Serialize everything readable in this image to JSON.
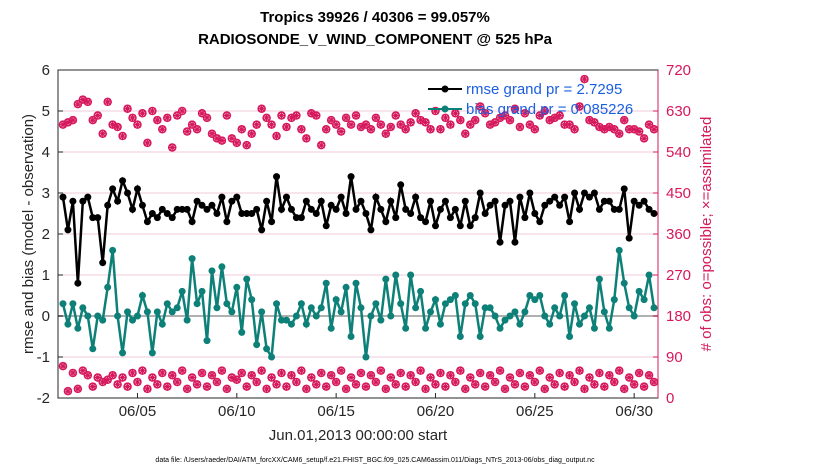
{
  "chart_data": {
    "type": "line",
    "title": "Tropics 39926 / 40306 = 99.057%",
    "subtitle": "RADIOSONDE_V_WIND_COMPONENT @ 525 hPa",
    "xlabel": "Jun.01,2013 00:00:00 start",
    "ylabel": "rmse and bias (model - observation)",
    "ylabel_right": "# of obs: o=possible; ×=assimilated",
    "x_tick_labels": [
      "06/05",
      "06/10",
      "06/15",
      "06/20",
      "06/25",
      "06/30"
    ],
    "x_tick_days": [
      4,
      9,
      14,
      19,
      24,
      29
    ],
    "xlim_days": [
      0,
      30.2
    ],
    "ylim": [
      -2,
      6
    ],
    "y_ticks": [
      -2,
      -1,
      0,
      1,
      2,
      3,
      4,
      5,
      6
    ],
    "ylim_right": [
      0,
      720
    ],
    "y_ticks_right": [
      0,
      90,
      180,
      270,
      360,
      450,
      540,
      630,
      720
    ],
    "grid": "horizontal",
    "legend_position": "top-right",
    "legend": [
      {
        "label": "rmse grand pr = 2.7295",
        "color": "#000000"
      },
      {
        "label": "bias grand pr = 0.085226",
        "color": "#0d8078"
      }
    ],
    "footer": "data file: /Users/raeder/DAI/ATM_forcXX/CAM6_setup/f.e21.FHIST_BGC.f09_025.CAM6assim.011/Diags_NTrS_2013-06/obs_diag_output.nc",
    "x_days": [
      0.25,
      0.5,
      0.75,
      1,
      1.25,
      1.5,
      1.75,
      2,
      2.25,
      2.5,
      2.75,
      3,
      3.25,
      3.5,
      3.75,
      4,
      4.25,
      4.5,
      4.75,
      5,
      5.25,
      5.5,
      5.75,
      6,
      6.25,
      6.5,
      6.75,
      7,
      7.25,
      7.5,
      7.75,
      8,
      8.25,
      8.5,
      8.75,
      9,
      9.25,
      9.5,
      9.75,
      10,
      10.25,
      10.5,
      10.75,
      11,
      11.25,
      11.5,
      11.75,
      12,
      12.25,
      12.5,
      12.75,
      13,
      13.25,
      13.5,
      13.75,
      14,
      14.25,
      14.5,
      14.75,
      15,
      15.25,
      15.5,
      15.75,
      16,
      16.25,
      16.5,
      16.75,
      17,
      17.25,
      17.5,
      17.75,
      18,
      18.25,
      18.5,
      18.75,
      19,
      19.25,
      19.5,
      19.75,
      20,
      20.25,
      20.5,
      20.75,
      21,
      21.25,
      21.5,
      21.75,
      22,
      22.25,
      22.5,
      22.75,
      23,
      23.25,
      23.5,
      23.75,
      24,
      24.25,
      24.5,
      24.75,
      25,
      25.25,
      25.5,
      25.75,
      26,
      26.25,
      26.5,
      26.75,
      27,
      27.25,
      27.5,
      27.75,
      28,
      28.25,
      28.5,
      28.75,
      29,
      29.25,
      29.5,
      29.75,
      30
    ],
    "series": [
      {
        "name": "rmse",
        "color": "#000000",
        "values": [
          2.9,
          2.1,
          2.8,
          0.8,
          2.8,
          2.9,
          2.4,
          2.4,
          1.3,
          2.7,
          3.1,
          2.8,
          3.3,
          3.0,
          2.6,
          3.1,
          2.7,
          2.3,
          2.5,
          2.4,
          2.6,
          2.5,
          2.4,
          2.6,
          2.6,
          2.6,
          2.3,
          2.8,
          2.7,
          2.6,
          2.7,
          2.5,
          2.9,
          2.3,
          2.8,
          2.9,
          2.5,
          2.5,
          2.5,
          2.6,
          2.1,
          2.8,
          2.3,
          3.4,
          2.6,
          2.9,
          2.6,
          2.4,
          2.4,
          2.8,
          2.6,
          2.5,
          2.8,
          2.2,
          2.7,
          2.6,
          2.9,
          2.5,
          3.4,
          2.6,
          2.8,
          2.5,
          2.1,
          2.9,
          2.6,
          2.3,
          2.8,
          2.4,
          3.2,
          2.6,
          2.5,
          2.9,
          2.4,
          2.3,
          2.8,
          2.2,
          2.6,
          2.8,
          2.4,
          2.6,
          2.2,
          2.8,
          2.2,
          2.4,
          3.0,
          2.5,
          2.7,
          2.8,
          1.8,
          2.7,
          2.8,
          1.8,
          2.9,
          2.4,
          3.0,
          2.5,
          2.3,
          2.7,
          2.8,
          2.9,
          2.7,
          2.9,
          2.3,
          3.0,
          2.6,
          3.0,
          2.9,
          3.0,
          2.6,
          2.8,
          2.8,
          2.6,
          2.6,
          3.1,
          1.9,
          2.8,
          2.7,
          2.8,
          2.6,
          2.5,
          1.4
        ],
        "markers": "filled-circle"
      },
      {
        "name": "bias",
        "color": "#0d8078",
        "values": [
          0.3,
          -0.2,
          0.3,
          -0.3,
          0.2,
          0.0,
          -0.8,
          0.0,
          -0.1,
          0.7,
          1.6,
          0.0,
          -0.9,
          0.1,
          -0.1,
          0.0,
          0.5,
          0.1,
          -0.9,
          0.1,
          -0.2,
          0.3,
          0.1,
          0.2,
          0.6,
          -0.1,
          1.4,
          0.3,
          0.6,
          -0.6,
          1.1,
          0.2,
          1.2,
          0.3,
          0.1,
          0.7,
          -0.4,
          0.9,
          0.4,
          -0.7,
          0.1,
          -0.8,
          -1.0,
          0.3,
          -0.1,
          -0.1,
          -0.2,
          0.0,
          0.3,
          -0.2,
          0.2,
          0.0,
          0.2,
          0.8,
          -0.3,
          0.4,
          0.1,
          0.7,
          -0.5,
          0.8,
          0.2,
          -1.0,
          0.0,
          0.3,
          -0.1,
          0.9,
          0.0,
          1.0,
          0.3,
          -0.3,
          1.0,
          0.2,
          0.6,
          -0.3,
          0.1,
          0.4,
          -0.2,
          0.3,
          0.4,
          0.5,
          -0.5,
          0.3,
          0.5,
          0.3,
          -0.5,
          0.2,
          0.2,
          0.0,
          -0.3,
          -0.1,
          0.0,
          0.1,
          -0.2,
          0.1,
          0.5,
          0.4,
          0.5,
          0.0,
          -0.2,
          0.2,
          0.0,
          0.5,
          -0.5,
          0.3,
          -0.2,
          0.0,
          0.2,
          -0.3,
          0.9,
          0.1,
          -0.3,
          0.4,
          1.6,
          0.8,
          0.2,
          0.0,
          0.6,
          0.4,
          1.0,
          0.2,
          0.1
        ],
        "markers": "filled-circle"
      },
      {
        "name": "obs possible",
        "axis": "right",
        "color": "#d6185c",
        "values": [
          600,
          605,
          610,
          645,
          655,
          650,
          610,
          620,
          580,
          650,
          600,
          595,
          575,
          635,
          615,
          600,
          625,
          560,
          630,
          610,
          590,
          615,
          550,
          620,
          630,
          585,
          600,
          590,
          625,
          615,
          580,
          570,
          565,
          620,
          570,
          560,
          590,
          555,
          580,
          600,
          635,
          615,
          600,
          575,
          620,
          595,
          615,
          620,
          590,
          570,
          625,
          620,
          555,
          590,
          610,
          600,
          585,
          615,
          600,
          620,
          595,
          600,
          590,
          615,
          600,
          580,
          595,
          620,
          600,
          590,
          605,
          625,
          610,
          605,
          590,
          630,
          590,
          615,
          600,
          625,
          610,
          580,
          600,
          610,
          640,
          625,
          600,
          605,
          615,
          620,
          610,
          635,
          595,
          625,
          600,
          590,
          620,
          630,
          610,
          615,
          620,
          600,
          600,
          590,
          640,
          700,
          610,
          605,
          595,
          590,
          595,
          590,
          580,
          610,
          590,
          590,
          585,
          570,
          600,
          590,
          595
        ],
        "markers": "open-circle"
      },
      {
        "name": "obs assimilated",
        "axis": "right",
        "color": "#d6185c",
        "values": [
          70,
          15,
          55,
          20,
          60,
          50,
          25,
          45,
          35,
          40,
          50,
          30,
          45,
          25,
          55,
          35,
          60,
          20,
          45,
          30,
          55,
          25,
          50,
          35,
          60,
          20,
          45,
          30,
          55,
          25,
          50,
          35,
          60,
          20,
          45,
          40,
          55,
          25,
          50,
          35,
          60,
          20,
          45,
          30,
          55,
          25,
          50,
          35,
          60,
          20,
          45,
          30,
          55,
          25,
          50,
          35,
          60,
          20,
          45,
          30,
          55,
          25,
          50,
          35,
          60,
          20,
          45,
          30,
          55,
          25,
          50,
          35,
          60,
          20,
          45,
          30,
          55,
          25,
          50,
          35,
          60,
          20,
          45,
          30,
          55,
          25,
          50,
          35,
          60,
          20,
          45,
          30,
          55,
          25,
          50,
          35,
          60,
          20,
          45,
          30,
          55,
          25,
          50,
          35,
          60,
          20,
          45,
          30,
          55,
          25,
          50,
          35,
          60,
          20,
          45,
          30,
          55,
          25,
          50,
          35,
          60
        ],
        "markers": "cross"
      }
    ]
  }
}
